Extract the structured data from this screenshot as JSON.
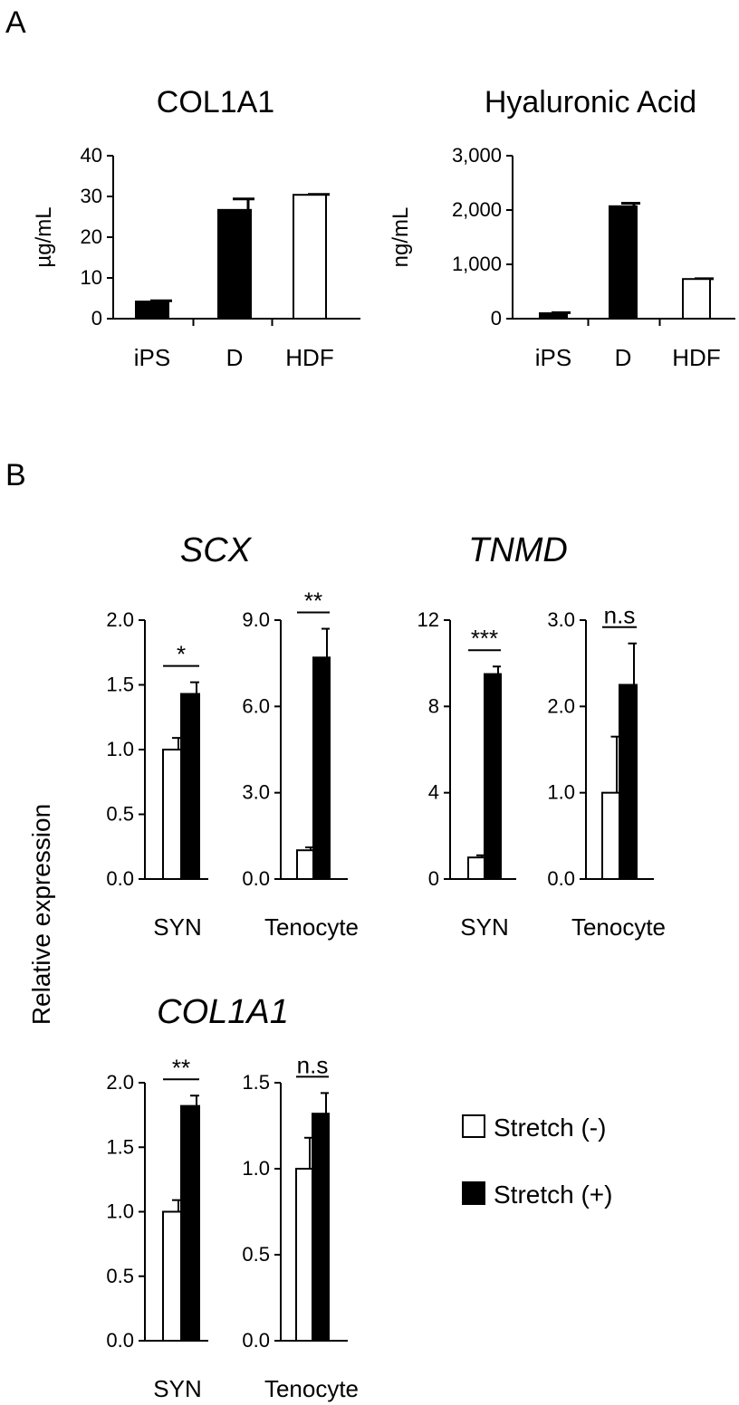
{
  "panel_labels": {
    "a": "A",
    "b": "B"
  },
  "shared_ylabel": "Relative expression",
  "legend": [
    {
      "label": "Stretch (-)",
      "color": "#ffffff"
    },
    {
      "label": "Stretch (+)",
      "color": "#000000"
    }
  ],
  "gene_titles": {
    "scx": "SCX",
    "tnmd": "TNMD",
    "col1a1": "COL1A1"
  },
  "chart_data": [
    {
      "id": "A1",
      "type": "bar",
      "title": "COL1A1",
      "ylabel": "µg/mL",
      "categories": [
        "iPS",
        "D",
        "HDF"
      ],
      "values": [
        4.2,
        26.7,
        30.4
      ],
      "errors": [
        0.2,
        2.7,
        0.1
      ],
      "colors": [
        "#000000",
        "#000000",
        "#ffffff"
      ],
      "ylim": [
        0,
        40
      ],
      "ticks": [
        0,
        10,
        20,
        30,
        40
      ],
      "tick_labels": [
        "0",
        "10",
        "20",
        "30",
        "40"
      ]
    },
    {
      "id": "A2",
      "type": "bar",
      "title": "Hyaluronic Acid",
      "ylabel": "ng/mL",
      "categories": [
        "iPS",
        "D",
        "HDF"
      ],
      "values": [
        100,
        2070,
        730
      ],
      "errors": [
        10,
        55,
        5
      ],
      "colors": [
        "#000000",
        "#000000",
        "#ffffff"
      ],
      "ylim": [
        0,
        3000
      ],
      "ticks": [
        0,
        1000,
        2000,
        3000
      ],
      "tick_labels": [
        "0",
        "1,000",
        "2,000",
        "3,000"
      ]
    },
    {
      "id": "B1",
      "type": "bar",
      "gene": "SCX",
      "category": "SYN",
      "series": [
        {
          "name": "Stretch (-)",
          "value": 1.0,
          "error": 0.09
        },
        {
          "name": "Stretch (+)",
          "value": 1.43,
          "error": 0.09
        }
      ],
      "ylim": [
        0,
        2.0
      ],
      "ticks": [
        0,
        0.5,
        1.0,
        1.5,
        2.0
      ],
      "tick_labels": [
        "0.0",
        "0.5",
        "1.0",
        "1.5",
        "2.0"
      ],
      "significance": "*"
    },
    {
      "id": "B2",
      "type": "bar",
      "gene": "SCX",
      "category": "Tenocyte",
      "series": [
        {
          "name": "Stretch (-)",
          "value": 1.0,
          "error": 0.1
        },
        {
          "name": "Stretch (+)",
          "value": 7.7,
          "error": 1.0
        }
      ],
      "ylim": [
        0,
        9.0
      ],
      "ticks": [
        0,
        3.0,
        6.0,
        9.0
      ],
      "tick_labels": [
        "0.0",
        "3.0",
        "6.0",
        "9.0"
      ],
      "significance": "**"
    },
    {
      "id": "B3",
      "type": "bar",
      "gene": "TNMD",
      "category": "SYN",
      "series": [
        {
          "name": "Stretch (-)",
          "value": 1.0,
          "error": 0.1
        },
        {
          "name": "Stretch (+)",
          "value": 9.5,
          "error": 0.35
        }
      ],
      "ylim": [
        0,
        12
      ],
      "ticks": [
        0,
        4,
        8,
        12
      ],
      "tick_labels": [
        "0",
        "4",
        "8",
        "12"
      ],
      "significance": "***"
    },
    {
      "id": "B4",
      "type": "bar",
      "gene": "TNMD",
      "category": "Tenocyte",
      "series": [
        {
          "name": "Stretch (-)",
          "value": 1.0,
          "error": 0.65
        },
        {
          "name": "Stretch (+)",
          "value": 2.25,
          "error": 0.48
        }
      ],
      "ylim": [
        0,
        3.0
      ],
      "ticks": [
        0,
        1.0,
        2.0,
        3.0
      ],
      "tick_labels": [
        "0.0",
        "1.0",
        "2.0",
        "3.0"
      ],
      "significance": "n.s"
    },
    {
      "id": "B5",
      "type": "bar",
      "gene": "COL1A1",
      "category": "SYN",
      "series": [
        {
          "name": "Stretch (-)",
          "value": 1.0,
          "error": 0.09
        },
        {
          "name": "Stretch (+)",
          "value": 1.82,
          "error": 0.08
        }
      ],
      "ylim": [
        0,
        2.0
      ],
      "ticks": [
        0,
        0.5,
        1.0,
        1.5,
        2.0
      ],
      "tick_labels": [
        "0.0",
        "0.5",
        "1.0",
        "1.5",
        "2.0"
      ],
      "significance": "**"
    },
    {
      "id": "B6",
      "type": "bar",
      "gene": "COL1A1",
      "category": "Tenocyte",
      "series": [
        {
          "name": "Stretch (-)",
          "value": 1.0,
          "error": 0.18
        },
        {
          "name": "Stretch (+)",
          "value": 1.32,
          "error": 0.12
        }
      ],
      "ylim": [
        0,
        1.5
      ],
      "ticks": [
        0,
        0.5,
        1.0,
        1.5
      ],
      "tick_labels": [
        "0.0",
        "0.5",
        "1.0",
        "1.5"
      ],
      "significance": "n.s"
    }
  ]
}
